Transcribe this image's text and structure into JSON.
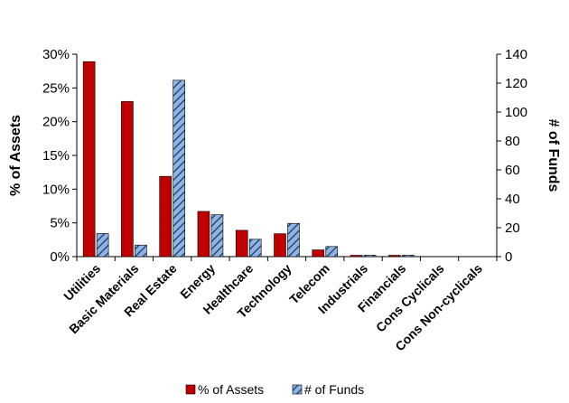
{
  "chart_data": {
    "type": "bar",
    "categories": [
      "Utilities",
      "Basic Materials",
      "Real Estate",
      "Energy",
      "Healthcare",
      "Technology",
      "Telecom",
      "Industrials",
      "Financials",
      "Cons Cyclicals",
      "Cons Non-cyclicals"
    ],
    "series": [
      {
        "name": "% of Assets",
        "axis": "left",
        "color": "#c00000",
        "values": [
          0.289,
          0.23,
          0.119,
          0.067,
          0.039,
          0.034,
          0.01,
          0.002,
          0.002,
          0.0,
          0.0
        ]
      },
      {
        "name": "# of Funds",
        "axis": "right",
        "color": "#8db4e2",
        "pattern": "diagonal-hatch",
        "values": [
          16,
          8,
          122,
          29,
          12,
          23,
          7,
          1,
          1,
          0,
          0
        ]
      }
    ],
    "ylabel": "% of Assets",
    "ylabel_right": "# of Funds",
    "ylim": [
      0,
      0.3
    ],
    "ylim_right": [
      0,
      140
    ],
    "yticks": [
      "0%",
      "5%",
      "10%",
      "15%",
      "20%",
      "25%",
      "30%"
    ],
    "yticks_right": [
      "0",
      "20",
      "40",
      "60",
      "80",
      "100",
      "120",
      "140"
    ],
    "grid": false,
    "legend": "bottom"
  }
}
